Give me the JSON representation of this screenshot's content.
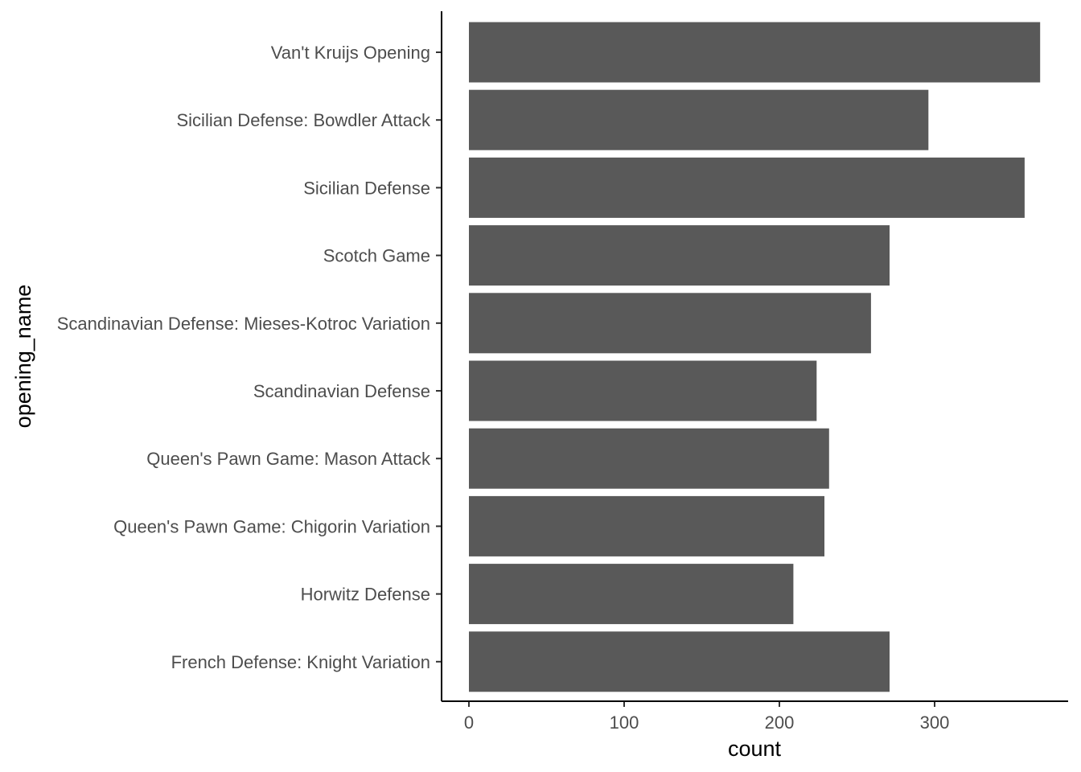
{
  "chart_data": {
    "type": "bar",
    "orientation": "horizontal",
    "categories": [
      "Van't Kruijs Opening",
      "Sicilian Defense: Bowdler Attack",
      "Sicilian Defense",
      "Scotch Game",
      "Scandinavian Defense: Mieses-Kotroc Variation",
      "Scandinavian Defense",
      "Queen's Pawn Game: Mason Attack",
      "Queen's Pawn Game: Chigorin Variation",
      "Horwitz Defense",
      "French Defense: Knight Variation"
    ],
    "values": [
      368,
      296,
      358,
      271,
      259,
      224,
      232,
      229,
      209,
      271
    ],
    "xlabel": "count",
    "ylabel": "opening_name",
    "xlim": [
      0,
      385
    ],
    "xticks": [
      0,
      100,
      200,
      300
    ],
    "grid": false,
    "bar_color": "#595959"
  }
}
